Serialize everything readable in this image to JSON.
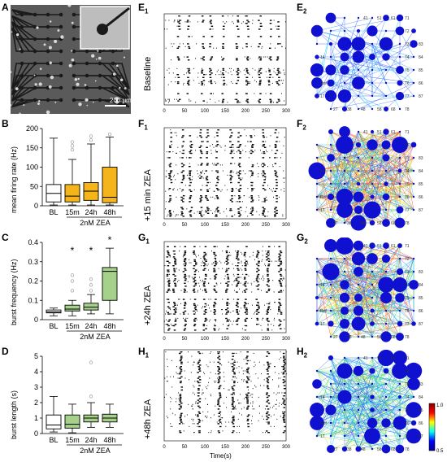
{
  "panel_labels": {
    "A": "A",
    "B": "B",
    "C": "C",
    "D": "D",
    "E1": "E",
    "F1": "F",
    "G1": "G",
    "H1": "H",
    "E2": "E",
    "F2": "F",
    "G2": "G",
    "H2": "H",
    "sub1": "1",
    "sub2": "2"
  },
  "scale_bar": "200 μm",
  "box_categories": [
    "BL",
    "15m",
    "24h",
    "48h"
  ],
  "group_label": "2nM ZEA",
  "B": {
    "ylabel": "mean firing rate (Hz)",
    "ticks": [
      "0",
      "50",
      "100",
      "150",
      "200"
    ]
  },
  "C": {
    "ylabel": "burst frequency (Hz)",
    "ticks": [
      "0",
      "0.1",
      "0.2",
      "0.3",
      "0.4"
    ],
    "star": "*"
  },
  "D": {
    "ylabel": "burst length (s)",
    "ticks": [
      "0",
      "1",
      "2",
      "3",
      "4",
      "5"
    ]
  },
  "raster_rows": [
    "Baseline",
    "+15 min ZEA",
    "+24h ZEA",
    "+48h ZEA"
  ],
  "raster_xticks": [
    "0",
    "50",
    "100",
    "150",
    "200",
    "250",
    "300"
  ],
  "raster_xlabel": "Time(s)",
  "net_labels": [
    "41",
    "51",
    "61",
    "71",
    "83",
    "84",
    "85",
    "86",
    "87",
    "14",
    "Ref",
    "17",
    "27",
    "28",
    "38",
    "48",
    "58",
    "68",
    "78",
    "72",
    "73",
    "74",
    "75",
    "76",
    "77"
  ],
  "colorbar": {
    "max": "1.0",
    "min": "0.5"
  },
  "chart_data": [
    {
      "type": "box",
      "name": "B",
      "categories": [
        "BL",
        "15m",
        "24h",
        "48h"
      ],
      "ylim": [
        0,
        200
      ],
      "boxes": [
        {
          "min": 2,
          "q1": 10,
          "med": 32,
          "q3": 55,
          "max": 175
        },
        {
          "min": 2,
          "q1": 10,
          "med": 25,
          "q3": 55,
          "max": 120
        },
        {
          "min": 2,
          "q1": 14,
          "med": 38,
          "q3": 60,
          "max": 160
        },
        {
          "min": 2,
          "q1": 8,
          "med": 22,
          "q3": 100,
          "max": 178
        }
      ],
      "outliers": [
        [
          1,
          145
        ],
        [
          1,
          155
        ],
        [
          1,
          165
        ],
        [
          2,
          170
        ],
        [
          2,
          180
        ],
        [
          3,
          185
        ]
      ]
    },
    {
      "type": "box",
      "name": "C",
      "categories": [
        "BL",
        "15m",
        "24h",
        "48h"
      ],
      "ylim": [
        0,
        0.4
      ],
      "boxes": [
        {
          "min": 0.02,
          "q1": 0.035,
          "med": 0.04,
          "q3": 0.05,
          "max": 0.06
        },
        {
          "min": 0.02,
          "q1": 0.045,
          "med": 0.055,
          "q3": 0.075,
          "max": 0.1
        },
        {
          "min": 0.03,
          "q1": 0.05,
          "med": 0.065,
          "q3": 0.085,
          "max": 0.13
        },
        {
          "min": 0.03,
          "q1": 0.1,
          "med": 0.25,
          "q3": 0.27,
          "max": 0.37
        }
      ],
      "outliers": [
        [
          1,
          0.2
        ],
        [
          1,
          0.23
        ],
        [
          1,
          0.15
        ],
        [
          2,
          0.18
        ],
        [
          2,
          0.21
        ],
        [
          2,
          0.15
        ]
      ],
      "stars": [
        1,
        2,
        3
      ]
    },
    {
      "type": "box",
      "name": "D",
      "categories": [
        "BL",
        "15m",
        "24h",
        "48h"
      ],
      "ylim": [
        0,
        5
      ],
      "boxes": [
        {
          "min": 0.1,
          "q1": 0.3,
          "med": 0.55,
          "q3": 1.2,
          "max": 2.4
        },
        {
          "min": 0.05,
          "q1": 0.35,
          "med": 0.6,
          "q3": 1.2,
          "max": 1.9
        },
        {
          "min": 0.4,
          "q1": 0.75,
          "med": 1.0,
          "q3": 1.2,
          "max": 2.0
        },
        {
          "min": 0.4,
          "q1": 0.75,
          "med": 1.0,
          "q3": 1.25,
          "max": 1.9
        }
      ],
      "outliers": [
        [
          2,
          4.6
        ],
        [
          2,
          2.4
        ]
      ]
    }
  ]
}
